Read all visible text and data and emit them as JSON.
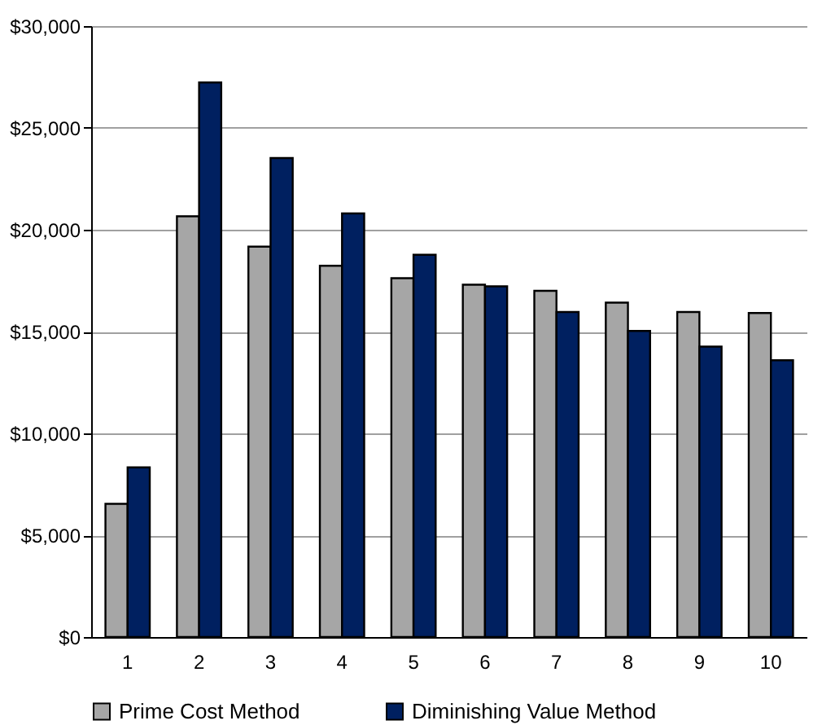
{
  "chart_data": {
    "type": "bar",
    "categories": [
      "1",
      "2",
      "3",
      "4",
      "5",
      "6",
      "7",
      "8",
      "9",
      "10"
    ],
    "series": [
      {
        "name": "Prime Cost Method",
        "color": "#a6a6a6",
        "values": [
          6540,
          20660,
          19170,
          18230,
          17620,
          17300,
          17000,
          16420,
          15960,
          15910
        ]
      },
      {
        "name": "Diminishing Value Method",
        "color": "#002060",
        "values": [
          8330,
          27230,
          23520,
          20800,
          18770,
          17220,
          15960,
          15030,
          14260,
          13590
        ]
      }
    ],
    "ylim": [
      0,
      30000
    ],
    "yticks": [
      {
        "value": 0,
        "label": "$0"
      },
      {
        "value": 5000,
        "label": "$5,000"
      },
      {
        "value": 10000,
        "label": "$10,000"
      },
      {
        "value": 15000,
        "label": "$15,000"
      },
      {
        "value": 20000,
        "label": "$20,000"
      },
      {
        "value": 25000,
        "label": "$25,000"
      },
      {
        "value": 30000,
        "label": "$30,000"
      }
    ],
    "grid": "y",
    "legend": "bottom"
  }
}
